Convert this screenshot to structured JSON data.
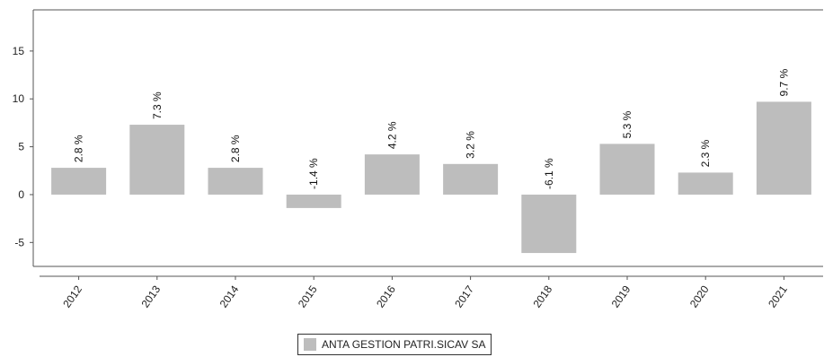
{
  "chart_data": {
    "type": "bar",
    "categories": [
      "2012",
      "2013",
      "2014",
      "2015",
      "2016",
      "2017",
      "2018",
      "2019",
      "2020",
      "2021"
    ],
    "series": [
      {
        "name": "ANTA GESTION PATRI.SICAV SA",
        "values": [
          2.8,
          7.3,
          2.8,
          -1.4,
          4.2,
          3.2,
          -6.1,
          5.3,
          2.3,
          9.7
        ],
        "data_labels": [
          "2.8 %",
          "7.3 %",
          "2.8 %",
          "-1.4 %",
          "4.2 %",
          "3.2 %",
          "-6.1 %",
          "5.3 %",
          "2.3 %",
          "9.7 %"
        ],
        "color": "#bdbdbd"
      }
    ],
    "yticks": [
      -5,
      0,
      5,
      10,
      15
    ],
    "ylim": [
      -7.5,
      19.3
    ],
    "grid": false,
    "legend_position": "bottom-center"
  },
  "legend": {
    "label": "ANTA GESTION PATRI.SICAV SA",
    "color": "#bdbdbd"
  }
}
